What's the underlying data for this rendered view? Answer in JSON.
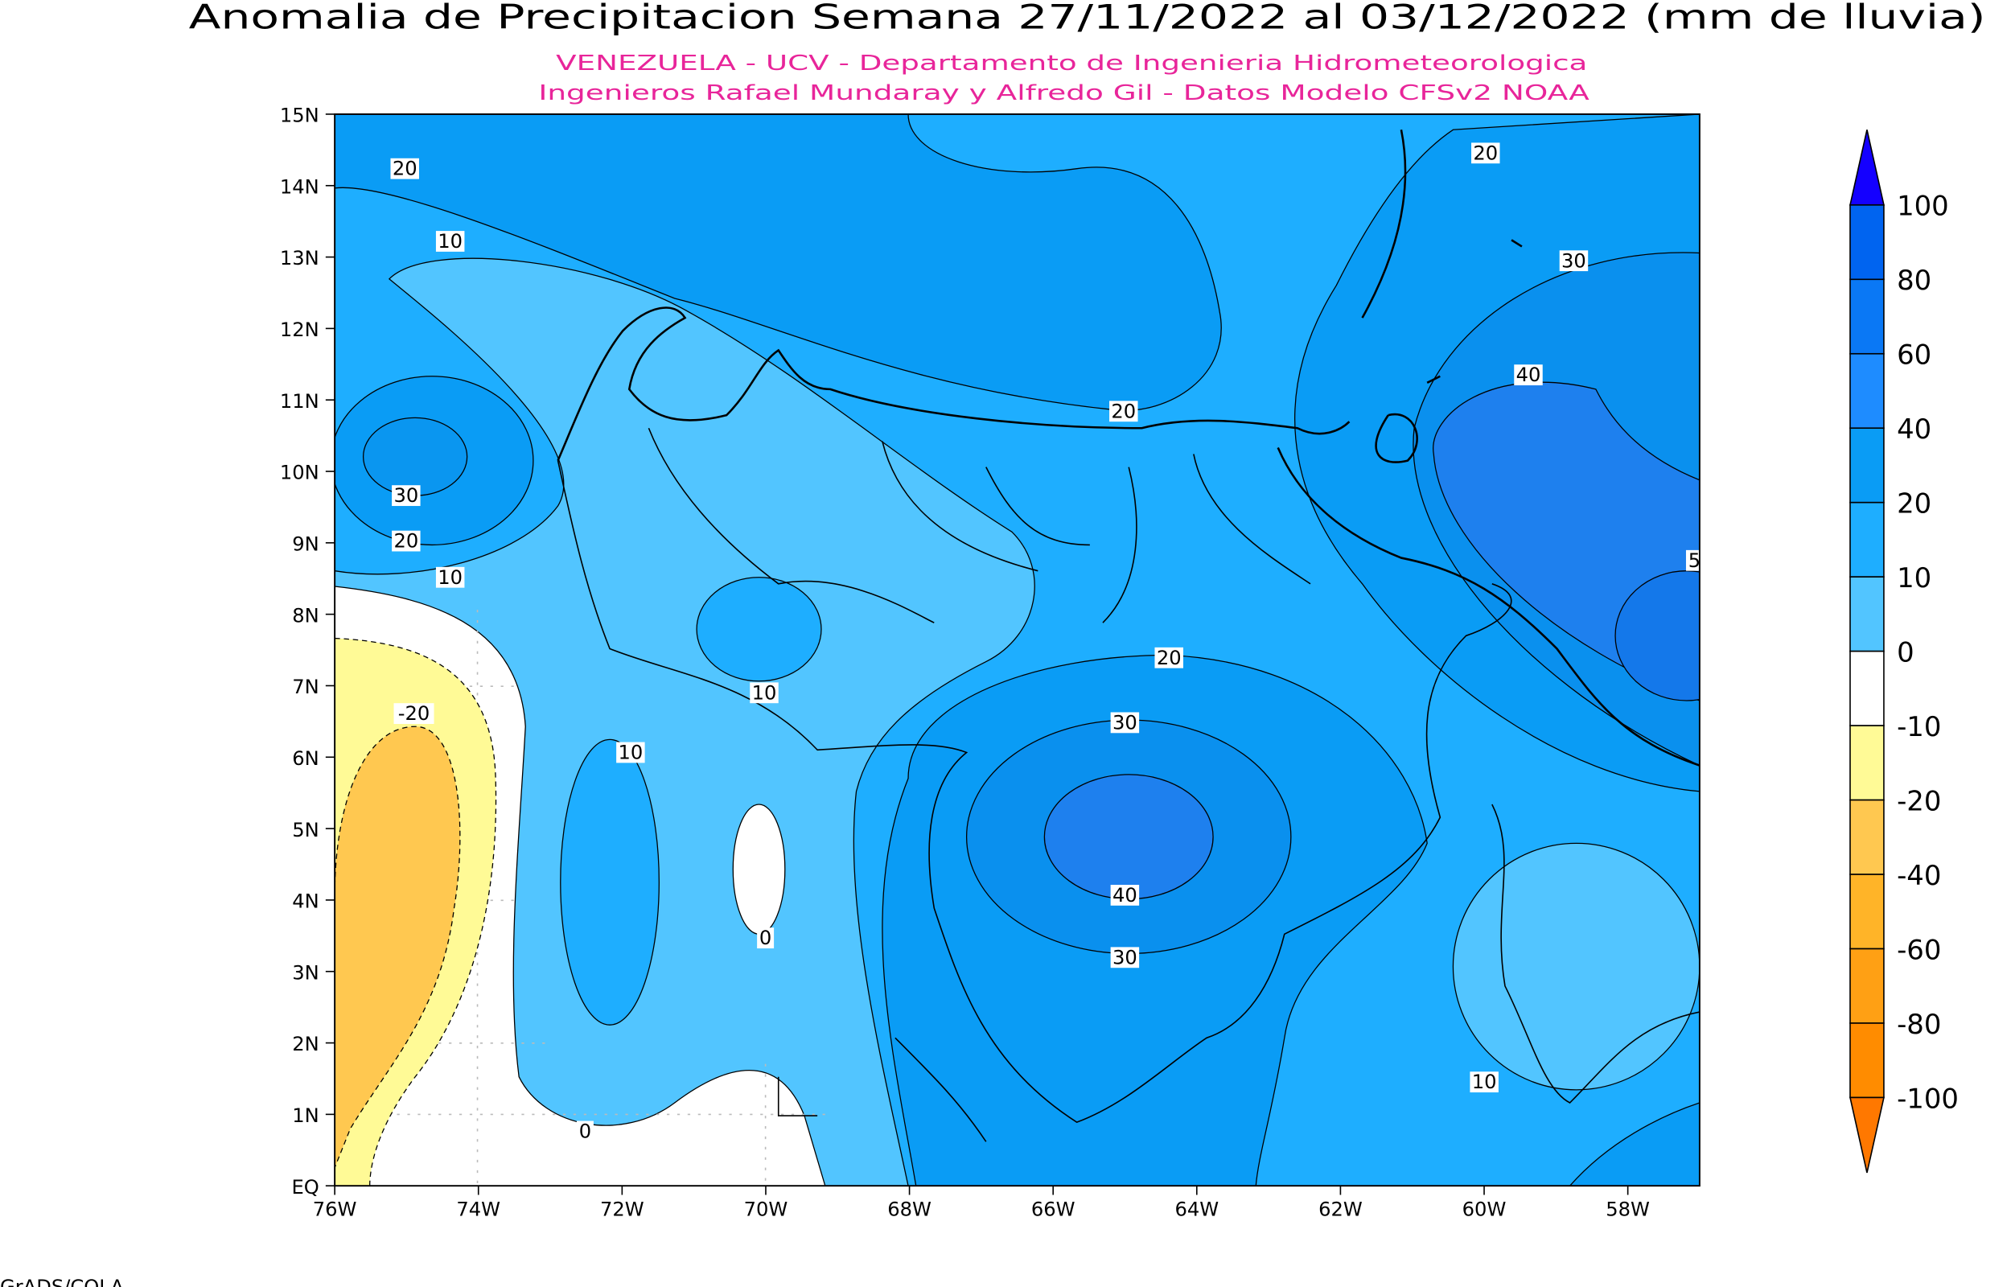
{
  "header": {
    "title": "Anomalia de Precipitacion Semana 27/11/2022 al 03/12/2022 (mm de lluvia)",
    "subtitle_lines": [
      "VENEZUELA - UCV - Departamento de Ingenieria Hidrometeorologica",
      "Ingenieros Rafael Mundaray y Alfredo Gil - Datos Modelo CFSv2 NOAA"
    ]
  },
  "map": {
    "lat_labels": [
      "15N",
      "14N",
      "13N",
      "12N",
      "11N",
      "10N",
      "9N",
      "8N",
      "7N",
      "6N",
      "5N",
      "4N",
      "3N",
      "2N",
      "1N",
      "EQ"
    ],
    "lon_labels": [
      "76W",
      "74W",
      "72W",
      "70W",
      "68W",
      "66W",
      "64W",
      "62W",
      "60W",
      "58W"
    ],
    "contour_labels": [
      "20",
      "10",
      "30",
      "20",
      "10",
      "20",
      "20",
      "30",
      "40",
      "5",
      "20",
      "10",
      "30",
      "-20",
      "10",
      "40",
      "0",
      "30",
      "0",
      "10"
    ]
  },
  "colorbar": {
    "labels": [
      "100",
      "80",
      "60",
      "40",
      "20",
      "10",
      "0",
      "-10",
      "-20",
      "-40",
      "-60",
      "-80",
      "-100"
    ],
    "colors": [
      "#1400ff",
      "#0064f0",
      "#0a78f5",
      "#1e8cff",
      "#0a9cf5",
      "#1eaeff",
      "#52c5ff",
      "#ffffff",
      "#fffa96",
      "#ffc850",
      "#ffb428",
      "#ffa014",
      "#ff8c00",
      "#ff7800"
    ]
  },
  "footer": {
    "text": "GrADS/COLA"
  }
}
